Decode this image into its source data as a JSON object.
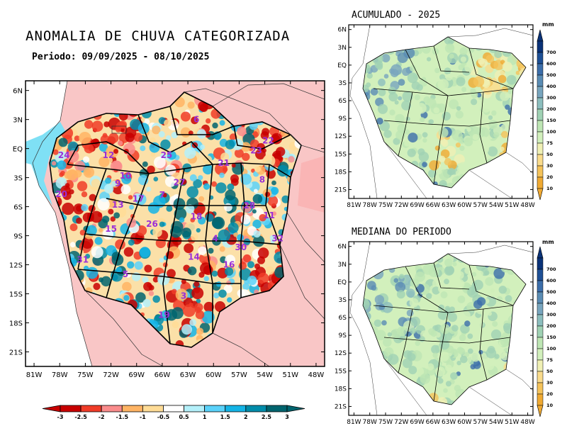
{
  "main_map": {
    "title": "ANOMALIA DE CHUVA CATEGORIZADA",
    "period": "Periodo: 09/09/2025 - 08/10/2025",
    "lat_labels": [
      "6N",
      "3N",
      "EQ",
      "3S",
      "6S",
      "9S",
      "12S",
      "15S",
      "18S",
      "21S"
    ],
    "lon_labels": [
      "81W",
      "78W",
      "75W",
      "72W",
      "69W",
      "66W",
      "63W",
      "60W",
      "57W",
      "54W",
      "51W",
      "48W"
    ],
    "basin_labels": [
      {
        "id": "6",
        "lon": -62.0,
        "lat": 3.0
      },
      {
        "id": "22",
        "lon": -53.6,
        "lat": 0.8
      },
      {
        "id": "23",
        "lon": -55.0,
        "lat": -0.2
      },
      {
        "id": "24",
        "lon": -77.5,
        "lat": -0.7
      },
      {
        "id": "12",
        "lon": -72.3,
        "lat": -0.7
      },
      {
        "id": "25",
        "lon": -65.5,
        "lat": -0.7
      },
      {
        "id": "21",
        "lon": -58.8,
        "lat": -1.5
      },
      {
        "id": "10",
        "lon": -70.3,
        "lat": -2.8
      },
      {
        "id": "9",
        "lon": -71.2,
        "lat": -3.6
      },
      {
        "id": "20",
        "lon": -77.8,
        "lat": -4.7
      },
      {
        "id": "27",
        "lon": -64.0,
        "lat": -3.5
      },
      {
        "id": "8",
        "lon": -54.3,
        "lat": -3.2
      },
      {
        "id": "17",
        "lon": -68.8,
        "lat": -5.2
      },
      {
        "id": "7",
        "lon": -66.0,
        "lat": -4.8
      },
      {
        "id": "13",
        "lon": -71.2,
        "lat": -5.8
      },
      {
        "id": "28",
        "lon": -55.8,
        "lat": -5.9
      },
      {
        "id": "11",
        "lon": -53.5,
        "lat": -6.9
      },
      {
        "id": "18",
        "lon": -62.0,
        "lat": -7.0
      },
      {
        "id": "15",
        "lon": -72.0,
        "lat": -8.3
      },
      {
        "id": "26",
        "lon": -67.2,
        "lat": -7.8
      },
      {
        "id": "4",
        "lon": -59.8,
        "lat": -9.3
      },
      {
        "id": "32",
        "lon": -52.5,
        "lat": -9.3
      },
      {
        "id": "30",
        "lon": -56.8,
        "lat": -10.2
      },
      {
        "id": "14",
        "lon": -62.3,
        "lat": -11.2
      },
      {
        "id": "31",
        "lon": -75.3,
        "lat": -11.5
      },
      {
        "id": "16",
        "lon": -58.2,
        "lat": -12.0
      },
      {
        "id": "5",
        "lon": -70.3,
        "lat": -13.0
      },
      {
        "id": "3",
        "lon": -63.5,
        "lat": -15.2
      },
      {
        "id": "19",
        "lon": -65.8,
        "lat": -17.2
      }
    ],
    "colorbar": {
      "labels": [
        "-3",
        "-2.5",
        "-2",
        "-1.5",
        "-1",
        "-0.5",
        "0.5",
        "1",
        "1.5",
        "2",
        "2.5",
        "3"
      ],
      "colors": [
        "#c80000",
        "#f03c28",
        "#fa8c8c",
        "#ffb464",
        "#ffdc96",
        "#ffffff",
        "#b4f0fa",
        "#5ad2fa",
        "#14b4e6",
        "#008caa",
        "#00646e"
      ]
    }
  },
  "accum_map": {
    "title": "ACUMULADO - 2025",
    "lat_labels": [
      "6N",
      "3N",
      "EQ",
      "3S",
      "6S",
      "9S",
      "12S",
      "15S",
      "18S",
      "21S"
    ],
    "lon_labels": [
      "81W",
      "78W",
      "75W",
      "72W",
      "69W",
      "66W",
      "63W",
      "60W",
      "57W",
      "54W",
      "51W",
      "48W"
    ]
  },
  "median_map": {
    "title": "MEDIANA DO PERIODO",
    "lat_labels": [
      "6N",
      "3N",
      "EQ",
      "3S",
      "6S",
      "9S",
      "12S",
      "15S",
      "18S",
      "21S"
    ],
    "lon_labels": [
      "81W",
      "78W",
      "75W",
      "72W",
      "69W",
      "66W",
      "63W",
      "60W",
      "57W",
      "54W",
      "51W",
      "48W"
    ]
  },
  "precip_scale": {
    "unit": "mm",
    "labels": [
      "700",
      "600",
      "500",
      "400",
      "300",
      "200",
      "150",
      "100",
      "75",
      "50",
      "30",
      "20",
      "10"
    ],
    "colors": [
      "#0a3278",
      "#1e5096",
      "#3c6eaa",
      "#5a8cb4",
      "#78a5be",
      "#8cbebe",
      "#a0d2b4",
      "#bee6b4",
      "#d2f0bc",
      "#f0f0b4",
      "#fadc8c",
      "#f5c35a",
      "#f0aa32"
    ]
  },
  "colors": {
    "dry_strong": "#c80000",
    "wet_strong": "#00646e",
    "label_purple": "#9b2fd6"
  }
}
